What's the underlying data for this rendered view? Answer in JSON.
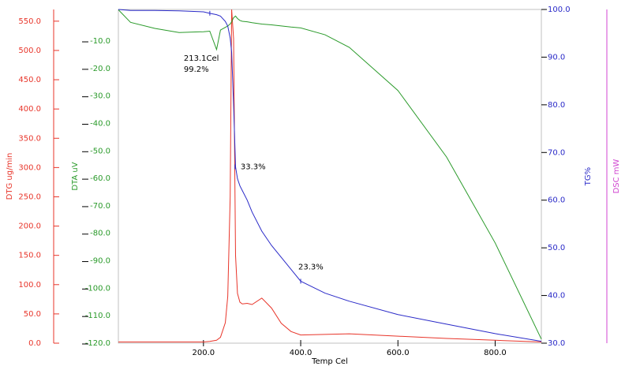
{
  "chart_data": {
    "type": "line",
    "x_label": "Temp Cel",
    "x": [
      25,
      50,
      100,
      150,
      200,
      213,
      227,
      235,
      245,
      250,
      255,
      258,
      262,
      266,
      270,
      275,
      280,
      290,
      300,
      320,
      340,
      360,
      380,
      400,
      450,
      500,
      600,
      700,
      800,
      895
    ],
    "xlim": [
      25,
      895
    ],
    "xticks": [
      {
        "value": 200,
        "label": "200.0"
      },
      {
        "value": 400,
        "label": "400.0"
      },
      {
        "value": 600,
        "label": "600.0"
      },
      {
        "value": 800,
        "label": "800.0"
      }
    ],
    "axes": [
      {
        "label": "DTG ug/min",
        "color": "#e8352a",
        "ylim": [
          0,
          570
        ],
        "yticks": [
          {
            "value": 0,
            "label": "0.0"
          },
          {
            "value": 50,
            "label": "50.0"
          },
          {
            "value": 100,
            "label": "100.0"
          },
          {
            "value": 150,
            "label": "150.0"
          },
          {
            "value": 200,
            "label": "200.0"
          },
          {
            "value": 250,
            "label": "250.0"
          },
          {
            "value": 300,
            "label": "300.0"
          },
          {
            "value": 350,
            "label": "350.0"
          },
          {
            "value": 400,
            "label": "400.0"
          },
          {
            "value": 450,
            "label": "450.0"
          },
          {
            "value": 500,
            "label": "500.0"
          },
          {
            "value": 550,
            "label": "550.0"
          }
        ],
        "values": [
          2,
          2,
          2,
          2,
          2,
          3,
          5,
          10,
          35,
          80,
          250,
          570,
          520,
          150,
          85,
          70,
          67,
          68,
          66,
          77,
          60,
          34,
          20,
          14,
          15,
          16,
          12,
          8,
          5,
          2
        ]
      },
      {
        "label": "DTA uV",
        "color": "#2a9a2a",
        "ylim": [
          -120,
          1.5
        ],
        "yticks": [
          {
            "value": -120,
            "label": "-120.0"
          },
          {
            "value": -110,
            "label": "-110.0"
          },
          {
            "value": -100,
            "label": "-100.0"
          },
          {
            "value": -90,
            "label": "-90.0"
          },
          {
            "value": -80,
            "label": "-80.0"
          },
          {
            "value": -70,
            "label": "-70.0"
          },
          {
            "value": -60,
            "label": "-60.0"
          },
          {
            "value": -50,
            "label": "-50.0"
          },
          {
            "value": -40,
            "label": "-40.0"
          },
          {
            "value": -30,
            "label": "-30.0"
          },
          {
            "value": -20,
            "label": "-20.0"
          },
          {
            "value": -10,
            "label": "-10.0"
          }
        ],
        "values": [
          1.4,
          -3.2,
          -5.4,
          -6.9,
          -6.6,
          -6.4,
          -13.1,
          -6,
          -5,
          -4.5,
          -3.8,
          -3,
          -1.5,
          -0.9,
          -1.8,
          -2.5,
          -2.8,
          -3,
          -3.3,
          -3.8,
          -4.1,
          -4.5,
          -4.9,
          -5.2,
          -7.7,
          -12.3,
          -28,
          -52.2,
          -83.5,
          -118.5
        ]
      },
      {
        "label": "TG%",
        "color": "#2a2ac8",
        "ylim": [
          30,
          100
        ],
        "yticks": [
          {
            "value": 30,
            "label": "30.0"
          },
          {
            "value": 40,
            "label": "40.0"
          },
          {
            "value": 50,
            "label": "50.0"
          },
          {
            "value": 60,
            "label": "60.0"
          },
          {
            "value": 70,
            "label": "70.0"
          },
          {
            "value": 80,
            "label": "80.0"
          },
          {
            "value": 90,
            "label": "90.0"
          },
          {
            "value": 100,
            "label": "100.0"
          }
        ],
        "values": [
          100,
          99.8,
          99.8,
          99.7,
          99.5,
          99.2,
          98.9,
          98.6,
          97.5,
          96.5,
          94,
          91,
          80,
          67,
          64.5,
          63,
          62,
          60,
          57.5,
          53.5,
          50.5,
          48,
          45.5,
          43,
          40.5,
          38.8,
          36,
          34,
          32,
          30.4
        ]
      },
      {
        "label": "DSC mW",
        "color": "#d044d0"
      }
    ],
    "annotations": [
      {
        "lines": [
          "213.1Cel",
          "99.2%"
        ],
        "x": 213.1,
        "y": 99.2
      },
      {
        "lines": [
          "33.3%"
        ],
        "x": 265,
        "y": 67
      },
      {
        "lines": [
          "23.3%"
        ],
        "x": 400,
        "y": 43
      }
    ]
  }
}
